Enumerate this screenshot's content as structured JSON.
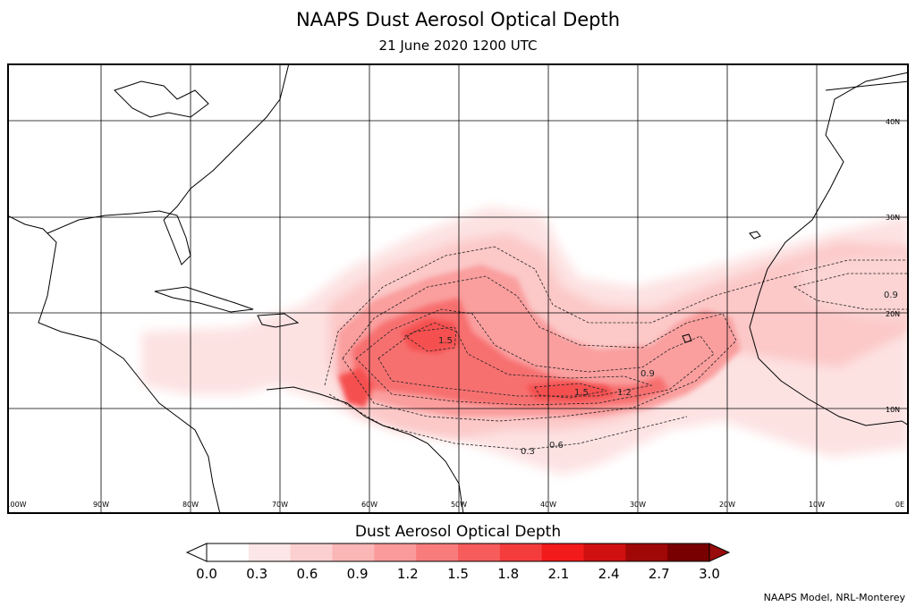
{
  "header": {
    "title": "NAAPS Dust Aerosol Optical Depth",
    "subtitle": "21 June 2020 1200 UTC"
  },
  "map": {
    "lat_labels": [
      "40N",
      "30N",
      "20N",
      "10N"
    ],
    "lon_labels": [
      "100W",
      "90W",
      "80W",
      "70W",
      "60W",
      "50W",
      "40W",
      "30W",
      "20W",
      "10W",
      "0E"
    ],
    "contour_labels": [
      "1.5",
      "1.5",
      "1.2",
      "0.9",
      "0.9",
      "0.6",
      "0.3"
    ],
    "land_color": "#ffffff",
    "coastline_color": "#000000",
    "grid_color": "#000000"
  },
  "colorbar": {
    "title": "Dust Aerosol Optical Depth",
    "ticks": [
      "0.0",
      "0.3",
      "0.6",
      "0.9",
      "1.2",
      "1.5",
      "1.8",
      "2.1",
      "2.4",
      "2.7",
      "3.0"
    ],
    "colors": [
      "#ffffff",
      "#fde6e6",
      "#fcd0d0",
      "#fbb6b6",
      "#fa9a9a",
      "#f87c7c",
      "#f65c5c",
      "#f43c3c",
      "#f21a1a",
      "#d01010",
      "#a00808",
      "#780000"
    ],
    "under_color": "#ffffff",
    "over_color": "#9a0c0c"
  },
  "footer": {
    "credit": "NAAPS Model, NRL-Monterey"
  }
}
